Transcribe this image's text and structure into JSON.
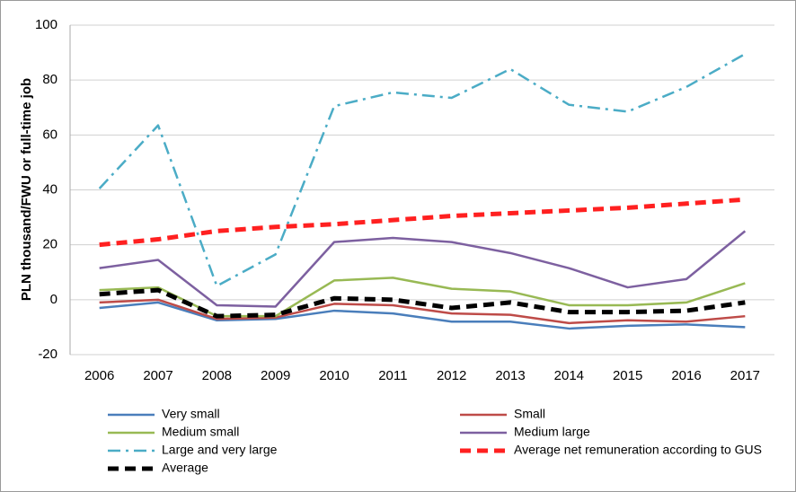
{
  "chart_data": {
    "type": "line",
    "y_label": "PLN thousand/FWU or full-time job",
    "categories": [
      "2006",
      "2007",
      "2008",
      "2009",
      "2010",
      "2011",
      "2012",
      "2013",
      "2014",
      "2015",
      "2016",
      "2017"
    ],
    "ylim": [
      -20,
      100
    ],
    "yticks": [
      -20,
      0,
      20,
      40,
      60,
      80,
      100
    ],
    "grid": true,
    "series": [
      {
        "name": "Very small",
        "color": "#4a7ebb",
        "dash": "solid",
        "values": [
          -3,
          -1,
          -7.5,
          -7,
          -4,
          -5,
          -8,
          -8,
          -10.5,
          -9.5,
          -9,
          -10
        ]
      },
      {
        "name": "Small",
        "color": "#be4b48",
        "dash": "solid",
        "values": [
          -1,
          0,
          -7,
          -6.5,
          -1.5,
          -2,
          -5,
          -5.5,
          -8.5,
          -7.5,
          -8,
          -6
        ]
      },
      {
        "name": "Medium small",
        "color": "#98b954",
        "dash": "solid",
        "values": [
          3.5,
          4.5,
          -6,
          -6,
          7,
          8,
          4,
          3,
          -2,
          -2,
          -1,
          6
        ]
      },
      {
        "name": "Medium large",
        "color": "#7d60a0",
        "dash": "solid",
        "values": [
          11.5,
          14.5,
          -2,
          -2.5,
          21,
          22.5,
          21,
          17,
          11.5,
          4.5,
          7.5,
          25
        ]
      },
      {
        "name": "Large and very large",
        "color": "#4bacc6",
        "dash": "dashdot",
        "values": [
          40.5,
          63.5,
          5,
          16.5,
          70.5,
          75.5,
          73.5,
          84,
          71,
          68.5,
          77.5,
          89.5
        ]
      },
      {
        "name": "Average net remuneration according to GUS",
        "color": "#ff2020",
        "dash": "dash",
        "values": [
          20,
          22,
          25,
          26.5,
          27.5,
          29,
          30.5,
          31.5,
          32.5,
          33.5,
          35,
          36.5
        ]
      },
      {
        "name": "Average",
        "color": "#000000",
        "dash": "dash",
        "values": [
          2,
          3.5,
          -6,
          -5.5,
          0.5,
          0,
          -3,
          -1,
          -4.5,
          -4.5,
          -4,
          -1
        ]
      }
    ]
  }
}
